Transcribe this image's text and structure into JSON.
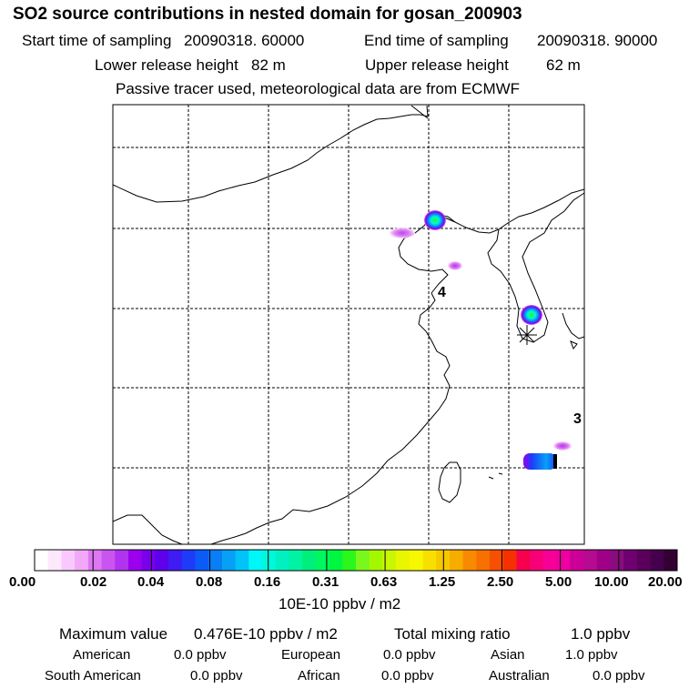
{
  "title": "SO2 source contributions in nested domain for gosan_200903",
  "header": {
    "start_label": "Start time of sampling",
    "start_value": "20090318. 60000",
    "end_label": "End time of sampling",
    "end_value": "20090318. 90000",
    "lower_label": "Lower release height",
    "lower_value": "82 m",
    "upper_label": "Upper release height",
    "upper_value": "62 m",
    "note": "Passive tracer used, meteorological data are from ECMWF"
  },
  "map": {
    "markers": [
      "4",
      "3"
    ],
    "receptor_symbol": "star-receptor-icon"
  },
  "colorbar": {
    "ticks": [
      "0.00",
      "0.02",
      "0.04",
      "0.08",
      "0.16",
      "0.31",
      "0.63",
      "1.25",
      "2.50",
      "5.00",
      "10.00",
      "20.00"
    ],
    "unit": "10E-10 ppbv / m2",
    "colors": [
      "#ffffff",
      "#fde8fe",
      "#f9c8fc",
      "#f2a8f8",
      "#dd77f2",
      "#c955f0",
      "#b133f0",
      "#9a00ee",
      "#7a00ec",
      "#5e00ec",
      "#3f1cf4",
      "#1e3cf7",
      "#0b5cf7",
      "#0a7ef7",
      "#06a0f7",
      "#00c3f7",
      "#00f7f7",
      "#00f7db",
      "#00f0c0",
      "#00f2a5",
      "#00ee7a",
      "#00f75e",
      "#00f740",
      "#2cf71c",
      "#7af71c",
      "#a5f700",
      "#c8f700",
      "#e8f700",
      "#f7f700",
      "#f7e000",
      "#f7c800",
      "#f7ad00",
      "#f78a00",
      "#f77000",
      "#f75000",
      "#f73000",
      "#f7004e",
      "#f70077",
      "#f70095",
      "#ee00a0",
      "#cc0097",
      "#b60a90",
      "#a00088",
      "#880c7c",
      "#6f0070",
      "#5a005c",
      "#44004d",
      "#330033"
    ]
  },
  "summary": {
    "max_label": "Maximum value",
    "max_value": "0.476E-10 ppbv / m2",
    "total_label": "Total mixing ratio",
    "total_value": "1.0 ppbv",
    "regions": [
      {
        "name": "American",
        "value": "0.0 ppbv"
      },
      {
        "name": "European",
        "value": "0.0 ppbv"
      },
      {
        "name": "Asian",
        "value": "1.0 ppbv"
      },
      {
        "name": "South American",
        "value": "0.0 ppbv"
      },
      {
        "name": "African",
        "value": "0.0 ppbv"
      },
      {
        "name": "Australian",
        "value": "0.0 ppbv"
      }
    ]
  }
}
